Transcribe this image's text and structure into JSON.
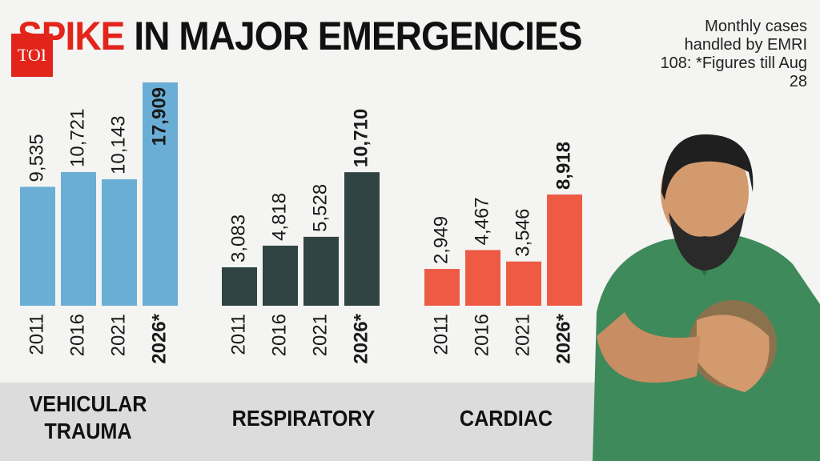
{
  "chart_data": {
    "type": "bar",
    "title": [
      "SPIKE",
      "IN MAJOR EMERGENCIES"
    ],
    "logo": "TOI",
    "note": "Monthly cases handled by EMRI 108: *Figures till Aug 28",
    "categories": [
      "2011",
      "2016",
      "2021",
      "2026*"
    ],
    "series": [
      {
        "name": "VEHICULAR TRAUMA",
        "color": "#6aaed6",
        "values": [
          9535,
          10721,
          10143,
          17909
        ],
        "value_labels": [
          "9,535",
          "10,721",
          "10,143",
          "17,909"
        ]
      },
      {
        "name": "RESPIRATORY",
        "color": "#2f4443",
        "values": [
          3083,
          4818,
          5528,
          10710
        ],
        "value_labels": [
          "3,083",
          "4,818",
          "5,528",
          "10,710"
        ]
      },
      {
        "name": "CARDIAC",
        "color": "#ee5a44",
        "values": [
          2949,
          4467,
          3546,
          8918
        ],
        "value_labels": [
          "2,949",
          "4,467",
          "3,546",
          "8,918"
        ]
      }
    ]
  }
}
